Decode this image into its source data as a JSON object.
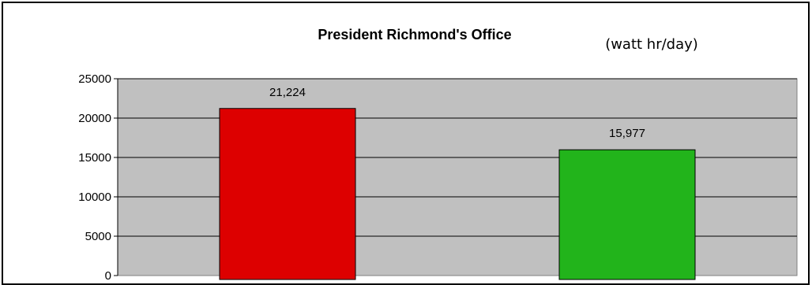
{
  "chart_data": {
    "type": "bar",
    "title": "President Richmond's Office",
    "unit_label": "(watt hr/day)",
    "categories": [
      "",
      ""
    ],
    "values": [
      21224,
      15977
    ],
    "data_labels": [
      "21,224",
      "15,977"
    ],
    "bar_colors": [
      "#dd0000",
      "#22b41b"
    ],
    "plot_background": "#c0c0c0",
    "gridlines": true,
    "ylim": [
      0,
      25000
    ],
    "yticks": [
      {
        "value": 0,
        "label": "0"
      },
      {
        "value": 5000,
        "label": "5000"
      },
      {
        "value": 10000,
        "label": "10000"
      },
      {
        "value": 15000,
        "label": "15000"
      },
      {
        "value": 20000,
        "label": "20000"
      },
      {
        "value": 25000,
        "label": "25000"
      }
    ]
  }
}
